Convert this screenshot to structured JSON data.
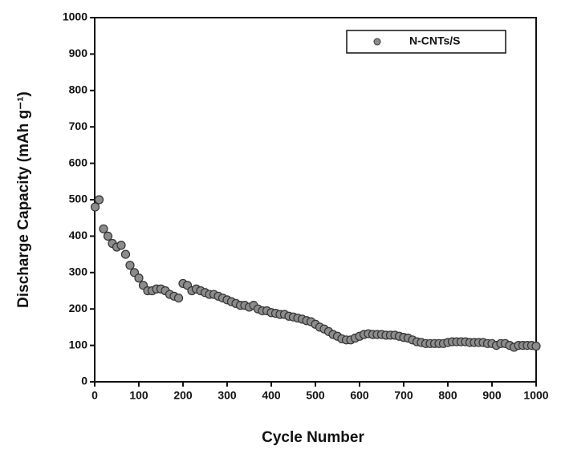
{
  "chart_data": {
    "type": "scatter",
    "xlabel": "Cycle Number",
    "ylabel": "Discharge Capacity (mAh g⁻¹)",
    "xlim": [
      0,
      1000
    ],
    "ylim": [
      0,
      1000
    ],
    "xticks": [
      0,
      100,
      200,
      300,
      400,
      500,
      600,
      700,
      800,
      900,
      1000
    ],
    "yticks": [
      0,
      100,
      200,
      300,
      400,
      500,
      600,
      700,
      800,
      900,
      1000
    ],
    "legend": "upper right",
    "series": [
      {
        "name": "N-CNTs/S",
        "color": "#8c8c8c",
        "x": [
          1,
          10,
          20,
          30,
          40,
          50,
          60,
          70,
          80,
          90,
          100,
          110,
          120,
          130,
          140,
          150,
          160,
          170,
          180,
          190,
          200,
          210,
          220,
          230,
          240,
          250,
          260,
          270,
          280,
          290,
          300,
          310,
          320,
          330,
          340,
          350,
          360,
          370,
          380,
          390,
          400,
          410,
          420,
          430,
          440,
          450,
          460,
          470,
          480,
          490,
          500,
          510,
          520,
          530,
          540,
          550,
          560,
          570,
          580,
          590,
          600,
          610,
          620,
          630,
          640,
          650,
          660,
          670,
          680,
          690,
          700,
          710,
          720,
          730,
          740,
          750,
          760,
          770,
          780,
          790,
          800,
          810,
          820,
          830,
          840,
          850,
          860,
          870,
          880,
          890,
          900,
          910,
          920,
          930,
          940,
          950,
          960,
          970,
          980,
          990,
          1000
        ],
        "values": [
          480,
          500,
          420,
          400,
          380,
          370,
          375,
          350,
          320,
          300,
          285,
          265,
          250,
          250,
          255,
          255,
          250,
          240,
          235,
          230,
          270,
          265,
          250,
          255,
          250,
          245,
          240,
          240,
          235,
          230,
          225,
          220,
          215,
          210,
          210,
          205,
          210,
          200,
          195,
          195,
          190,
          188,
          185,
          185,
          180,
          178,
          175,
          172,
          168,
          165,
          158,
          150,
          145,
          138,
          130,
          125,
          118,
          115,
          115,
          120,
          125,
          130,
          132,
          130,
          130,
          130,
          128,
          128,
          128,
          125,
          122,
          120,
          115,
          110,
          108,
          105,
          105,
          105,
          105,
          105,
          108,
          110,
          110,
          110,
          110,
          108,
          108,
          108,
          108,
          105,
          105,
          100,
          105,
          105,
          100,
          95,
          100,
          100,
          100,
          100,
          98
        ]
      }
    ]
  }
}
